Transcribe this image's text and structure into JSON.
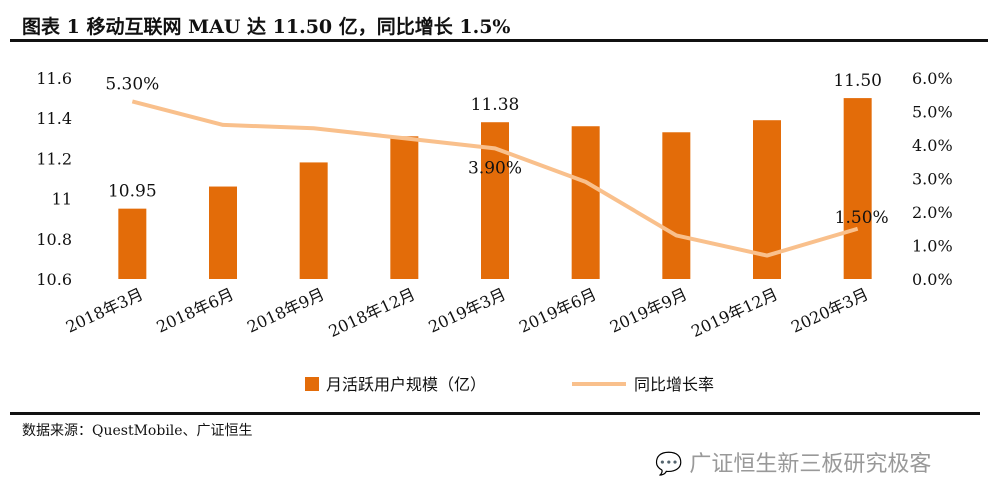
{
  "title": "图表 1 移动互联网 MAU 达 11.50 亿，同比增长 1.5%",
  "source": "数据来源：QuestMobile、广证恒生",
  "watermark": "广证恒生新三板研究极客",
  "chart_data": {
    "type": "bar+line",
    "categories": [
      "2018年3月",
      "2018年6月",
      "2018年9月",
      "2018年12月",
      "2019年3月",
      "2019年6月",
      "2019年9月",
      "2019年12月",
      "2020年3月"
    ],
    "series": [
      {
        "name": "月活跃用户规模（亿）",
        "type": "bar",
        "axis": "left",
        "color": "#E36C09",
        "values": [
          10.95,
          11.06,
          11.18,
          11.31,
          11.38,
          11.36,
          11.33,
          11.39,
          11.5
        ]
      },
      {
        "name": "同比增长率",
        "type": "line",
        "axis": "right",
        "color": "#F9C08C",
        "values": [
          5.3,
          4.6,
          4.5,
          4.2,
          3.9,
          2.9,
          1.3,
          0.7,
          1.5
        ]
      }
    ],
    "left_axis": {
      "min": 10.6,
      "max": 11.6,
      "ticks": [
        "10.6",
        "10.8",
        "11",
        "11.2",
        "11.4",
        "11.6"
      ]
    },
    "right_axis": {
      "min": 0,
      "max": 6,
      "ticks": [
        "0.0%",
        "1.0%",
        "2.0%",
        "3.0%",
        "4.0%",
        "5.0%",
        "6.0%"
      ]
    },
    "data_labels": [
      {
        "series": 0,
        "index": 0,
        "text": "10.95"
      },
      {
        "series": 0,
        "index": 4,
        "text": "11.38"
      },
      {
        "series": 0,
        "index": 8,
        "text": "11.50"
      },
      {
        "series": 1,
        "index": 0,
        "text": "5.30%"
      },
      {
        "series": 1,
        "index": 4,
        "text": "3.90%"
      },
      {
        "series": 1,
        "index": 8,
        "text": "1.50%"
      }
    ],
    "legend": "bottom",
    "grid": false
  }
}
